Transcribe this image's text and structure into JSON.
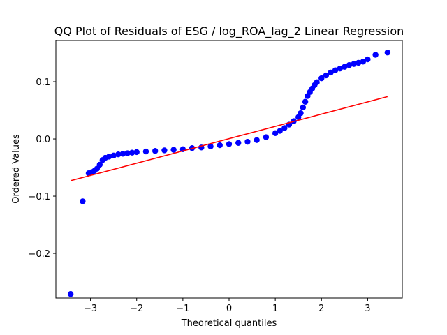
{
  "chart_data": {
    "type": "scatter",
    "title": "QQ Plot of Residuals of ESG / log_ROA_lag_2 Linear Regression",
    "xlabel": "Theoretical quantiles",
    "ylabel": "Ordered Values",
    "xlim": [
      -3.75,
      3.75
    ],
    "ylim": [
      -0.278,
      0.172
    ],
    "x_ticks": [
      -3,
      -2,
      -1,
      0,
      1,
      2,
      3
    ],
    "x_tick_labels": [
      "−3",
      "−2",
      "−1",
      "0",
      "1",
      "2",
      "3"
    ],
    "y_ticks": [
      -0.2,
      -0.1,
      0.0,
      0.1
    ],
    "y_tick_labels": [
      "−0.2",
      "−0.1",
      "0.0",
      "0.1"
    ],
    "grid": false,
    "series": [
      {
        "kind": "points",
        "color": "#0000ff",
        "x": [
          -3.43,
          -3.17,
          -3.04,
          -2.97,
          -2.92,
          -2.86,
          -2.8,
          -2.74,
          -2.68,
          -2.6,
          -2.5,
          -2.4,
          -2.3,
          -2.2,
          -2.1,
          -2.0,
          -1.8,
          -1.6,
          -1.4,
          -1.2,
          -1.0,
          -0.8,
          -0.6,
          -0.4,
          -0.2,
          0.0,
          0.2,
          0.4,
          0.6,
          0.8,
          1.0,
          1.1,
          1.2,
          1.3,
          1.4,
          1.5,
          1.55,
          1.6,
          1.65,
          1.7,
          1.75,
          1.8,
          1.85,
          1.9,
          2.0,
          2.1,
          2.2,
          2.3,
          2.4,
          2.5,
          2.6,
          2.7,
          2.8,
          2.9,
          3.0,
          3.17,
          3.43
        ],
        "y": [
          -0.271,
          -0.109,
          -0.06,
          -0.058,
          -0.056,
          -0.052,
          -0.045,
          -0.037,
          -0.033,
          -0.031,
          -0.029,
          -0.027,
          -0.026,
          -0.025,
          -0.024,
          -0.023,
          -0.022,
          -0.021,
          -0.02,
          -0.019,
          -0.018,
          -0.016,
          -0.015,
          -0.013,
          -0.011,
          -0.009,
          -0.007,
          -0.005,
          -0.002,
          0.003,
          0.01,
          0.014,
          0.019,
          0.025,
          0.031,
          0.038,
          0.045,
          0.055,
          0.065,
          0.075,
          0.082,
          0.088,
          0.094,
          0.099,
          0.106,
          0.111,
          0.116,
          0.12,
          0.123,
          0.126,
          0.129,
          0.131,
          0.133,
          0.135,
          0.139,
          0.147,
          0.151
        ]
      },
      {
        "kind": "line",
        "color": "#ff0000",
        "x": [
          -3.43,
          3.43
        ],
        "y": [
          -0.073,
          0.074
        ]
      }
    ]
  }
}
